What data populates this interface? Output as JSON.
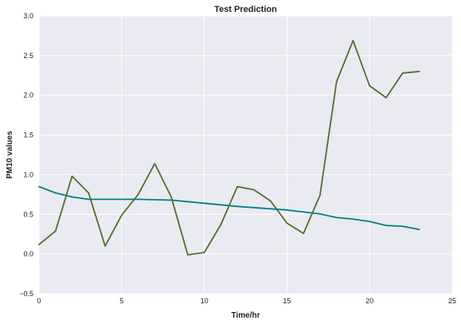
{
  "chart_data": {
    "type": "line",
    "title": "Test Prediction",
    "xlabel": "Time/hr",
    "ylabel": "PM10 values",
    "xlim": [
      0,
      25
    ],
    "ylim": [
      -0.5,
      3.0
    ],
    "x_ticks": [
      0,
      5,
      10,
      15,
      20,
      25
    ],
    "x_tick_labels": [
      "0",
      "5",
      "10",
      "15",
      "20",
      "25"
    ],
    "y_ticks": [
      -0.5,
      0.0,
      0.5,
      1.0,
      1.5,
      2.0,
      2.5,
      3.0
    ],
    "y_tick_labels": [
      "−0.5",
      "0.0",
      "0.5",
      "1.0",
      "1.5",
      "2.0",
      "2.5",
      "3.0"
    ],
    "grid": true,
    "background": "#EAEAF2",
    "x": [
      0,
      1,
      2,
      3,
      4,
      5,
      6,
      7,
      8,
      9,
      10,
      11,
      12,
      13,
      14,
      15,
      16,
      17,
      18,
      19,
      20,
      21,
      22,
      23
    ],
    "series": [
      {
        "color": "#556B2F",
        "values": [
          0.12,
          0.29,
          0.98,
          0.77,
          0.1,
          0.49,
          0.75,
          1.14,
          0.72,
          -0.01,
          0.02,
          0.37,
          0.85,
          0.81,
          0.67,
          0.39,
          0.26,
          0.74,
          2.17,
          2.69,
          2.12,
          1.97,
          2.28,
          2.3
        ]
      },
      {
        "color": "#008080",
        "values": [
          0.85,
          0.77,
          0.72,
          0.69,
          0.69,
          0.69,
          0.69,
          0.685,
          0.68,
          0.66,
          0.64,
          0.62,
          0.6,
          0.585,
          0.57,
          0.555,
          0.53,
          0.505,
          0.46,
          0.44,
          0.41,
          0.36,
          0.35,
          0.31
        ]
      }
    ]
  }
}
